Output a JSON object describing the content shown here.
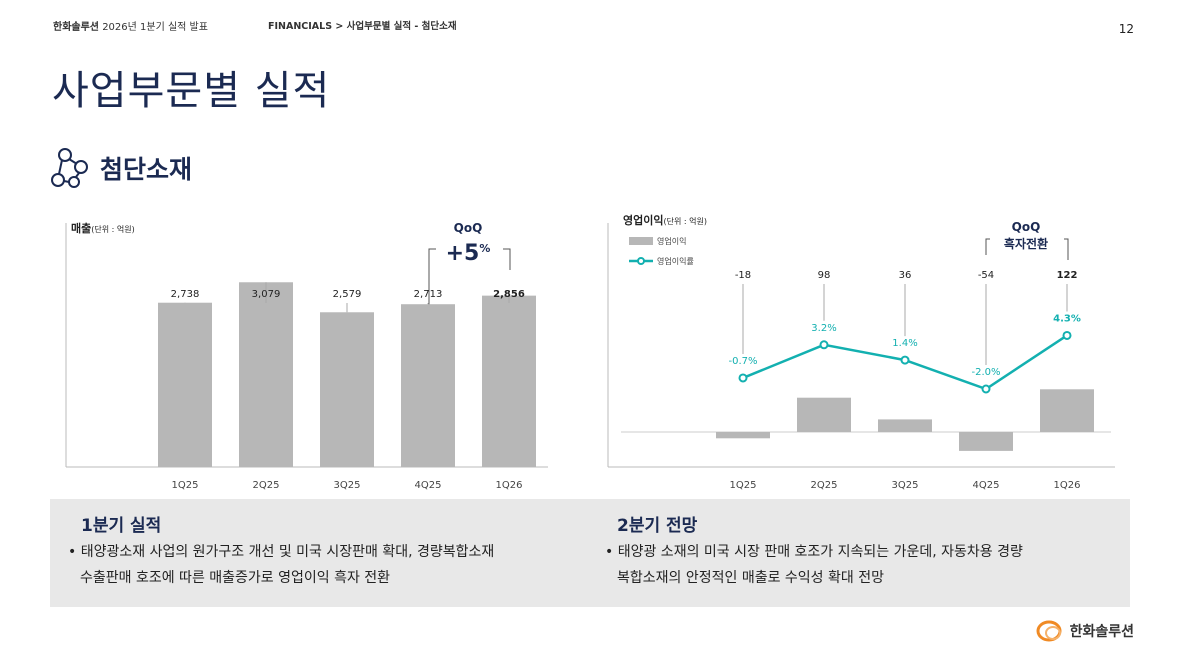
{
  "header": {
    "company": "한화솔루션",
    "event": "2026년 1분기 실적 발표",
    "crumb": "FINANCIALS  >  사업부문별 실적 - 첨단소재",
    "page": "12"
  },
  "title": "사업부문별 실적",
  "section": "첨단소재",
  "revenue": {
    "label": "매출",
    "unit": "(단위 : 억원)",
    "qoq_label": "QoQ",
    "qoq_value": "+5",
    "qoq_unit": "%",
    "bar_color": "#b7b7b7"
  },
  "op": {
    "label": "영업이익",
    "unit": "(단위 : 억원)",
    "legend_bar": "영업이익",
    "legend_line": "영업이익률",
    "qoq_label": "QoQ",
    "qoq_value": "흑자전환",
    "line_color": "#13b0b0"
  },
  "chart_data": [
    {
      "type": "bar",
      "title": "매출(단위 : 억원)",
      "categories": [
        "1Q25",
        "2Q25",
        "3Q25",
        "4Q25",
        "1Q26"
      ],
      "values": [
        2738,
        3079,
        2579,
        2713,
        2856
      ],
      "labels": [
        "2,738",
        "3,079",
        "2,579",
        "2,713",
        "2,856"
      ],
      "ylim": [
        0,
        3500
      ]
    },
    {
      "type": "bar",
      "title": "영업이익(단위 : 억원)",
      "categories": [
        "1Q25",
        "2Q25",
        "3Q25",
        "4Q25",
        "1Q26"
      ],
      "series": [
        {
          "name": "영업이익",
          "values": [
            -18,
            98,
            36,
            -54,
            122
          ],
          "labels": [
            "-18",
            "98",
            "36",
            "-54",
            "122"
          ]
        },
        {
          "name": "영업이익률",
          "type": "line",
          "values": [
            -0.7,
            3.2,
            1.4,
            -2.0,
            4.3
          ],
          "labels": [
            "-0.7%",
            "3.2%",
            "1.4%",
            "-2.0%",
            "4.3%"
          ]
        }
      ]
    }
  ],
  "summary": {
    "q1_title": "1분기 실적",
    "q1_l1": "태양광소재 사업의  원가구조 개선 및 미국 시장판매 확대, 경량복합소재",
    "q1_l2": "수출판매 호조에 따른 매출증가로 영업이익 흑자 전환",
    "q2_title": "2분기 전망",
    "q2_l1": "태양광 소재의 미국 시장 판매 호조가 지속되는 가운데, 자동차용 경량",
    "q2_l2": "복합소재의 안정적인 매출로 수익성 확대  전망"
  },
  "logo": "한화솔루션",
  "bullet": "•"
}
